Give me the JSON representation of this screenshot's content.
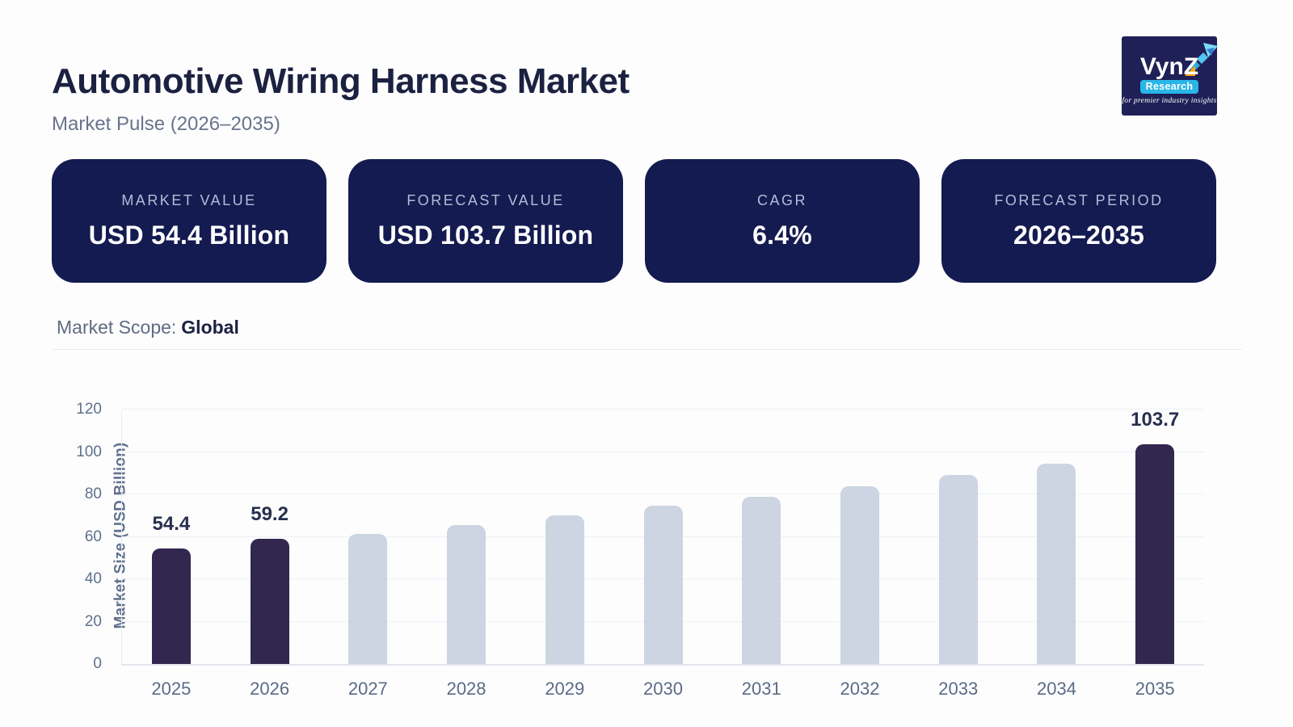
{
  "page": {
    "title": "Automotive Wiring Harness Market",
    "subtitle": "Market Pulse (2026–2035)"
  },
  "logo": {
    "brand": "Vyn",
    "brand_z": "Z",
    "badge": "Research",
    "tagline": "for premier industry insights",
    "bg_color": "#1f2058",
    "badge_color": "#29b5e8",
    "z_accent_color": "#f6a700"
  },
  "stats": [
    {
      "label": "MARKET VALUE",
      "value": "USD 54.4 Billion"
    },
    {
      "label": "FORECAST VALUE",
      "value": "USD 103.7 Billion"
    },
    {
      "label": "CAGR",
      "value": "6.4%"
    },
    {
      "label": "FORECAST PERIOD",
      "value": "2026–2035"
    }
  ],
  "scope": {
    "label": "Market Scope:",
    "value": "Global"
  },
  "chart_data": {
    "type": "bar",
    "categories": [
      "2025",
      "2026",
      "2027",
      "2028",
      "2029",
      "2030",
      "2031",
      "2032",
      "2033",
      "2034",
      "2035"
    ],
    "values": [
      54.4,
      59.2,
      61.5,
      65.5,
      70,
      74.5,
      79,
      84,
      89,
      94.5,
      103.7
    ],
    "point_labels": [
      "54.4",
      "59.2",
      "",
      "",
      "",
      "",
      "",
      "",
      "",
      "",
      "103.7"
    ],
    "highlighted_categories": [
      "2025",
      "2026",
      "2035"
    ],
    "title": "",
    "xlabel": "",
    "ylabel": "Market Size (USD Billion)",
    "yticks": [
      0,
      20,
      40,
      60,
      80,
      100,
      120
    ],
    "ylim": [
      0,
      120
    ],
    "grid": true,
    "legend": false,
    "bar_color_highlight": "#32274f",
    "bar_color_default": "#cdd5e2"
  }
}
